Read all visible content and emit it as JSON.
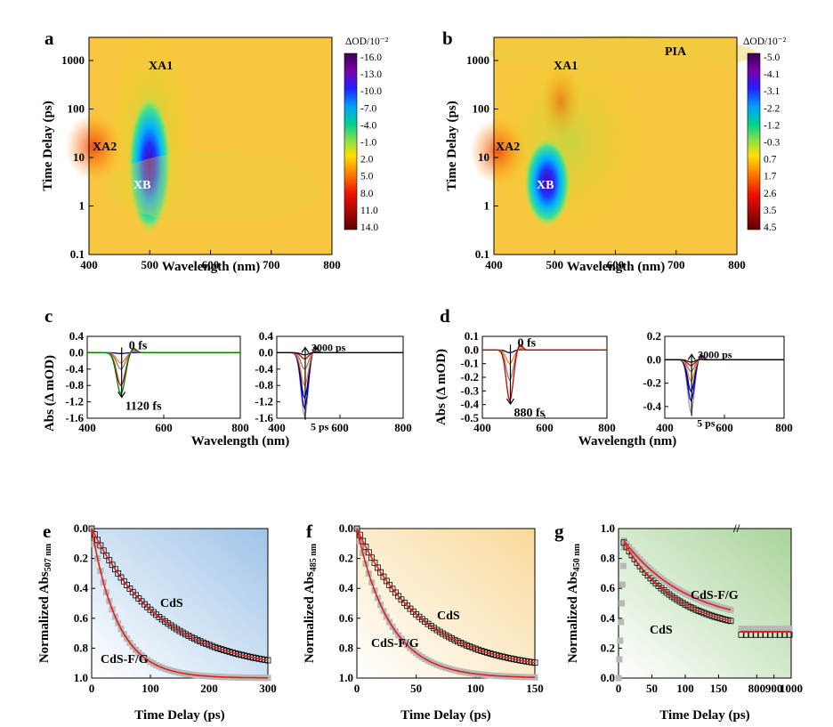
{
  "panels": [
    {
      "id": "a",
      "letter": "a",
      "type": "heatmap",
      "xlabel": "Wavelength (nm)",
      "ylabel": "Time Delay (ps)",
      "x_ticks": [
        "400",
        "500",
        "600",
        "700",
        "800"
      ],
      "y_ticks": [
        "0.1",
        "1",
        "10",
        "100",
        "1000"
      ],
      "xlim": [
        400,
        800
      ],
      "ylim": [
        0.1,
        3000
      ],
      "y_scale": "log",
      "colorbar_title": "ΔOD/10⁻²",
      "colorbar_ticks": [
        "-16.0",
        "-13.0",
        "-10.0",
        "-7.0",
        "-4.0",
        "-1.0",
        "2.0",
        "5.0",
        "8.0",
        "11.0",
        "14.0"
      ],
      "annotations": [
        {
          "text": "XA1",
          "x": 505,
          "y": 1000
        },
        {
          "text": "XA2",
          "x": 410,
          "y": 15
        },
        {
          "text": "XB",
          "x": 490,
          "y": 2.6
        }
      ]
    },
    {
      "id": "b",
      "letter": "b",
      "type": "heatmap",
      "xlabel": "Wavelength (nm)",
      "ylabel": "Time Delay (ps)",
      "x_ticks": [
        "400",
        "500",
        "600",
        "700",
        "800"
      ],
      "y_ticks": [
        "0.1",
        "1",
        "10",
        "100",
        "1000"
      ],
      "xlim": [
        400,
        800
      ],
      "ylim": [
        0.1,
        3000
      ],
      "y_scale": "log",
      "colorbar_title": "ΔOD/10⁻²",
      "colorbar_ticks": [
        "-5.0",
        "-4.1",
        "-3.1",
        "-2.2",
        "-1.2",
        "-0.3",
        "0.7",
        "1.7",
        "2.6",
        "3.5",
        "4.5"
      ],
      "annotations": [
        {
          "text": "XA1",
          "x": 520,
          "y": 1000
        },
        {
          "text": "XA2",
          "x": 410,
          "y": 15
        },
        {
          "text": "XB",
          "x": 490,
          "y": 2.6
        },
        {
          "text": "PIA",
          "x": 735,
          "y": 1500
        }
      ]
    },
    {
      "id": "c",
      "letter": "c",
      "type": "line",
      "ylabel": "Abs (Δ mOD)",
      "xlabel": "Wavelength (nm)",
      "subplots": [
        {
          "xlim": [
            400,
            800
          ],
          "ylim": [
            -1.6,
            0.4
          ],
          "x_ticks": [
            "400",
            "600",
            "800"
          ],
          "y_ticks": [
            "0.4",
            "0.0",
            "-0.4",
            "-0.8",
            "-1.2",
            "-1.6"
          ],
          "arrow_from_label": "0 fs",
          "arrow_to_label": "1120 fs",
          "series": [
            {
              "color": "#000080",
              "peak": -0.02
            },
            {
              "color": "#ff7f0e",
              "peak": -0.25
            },
            {
              "color": "#808080",
              "peak": -0.4
            },
            {
              "color": "#cc0000",
              "peak": -0.8
            },
            {
              "color": "#008000",
              "peak": -1.0
            }
          ]
        },
        {
          "xlim": [
            400,
            800
          ],
          "ylim": [
            -1.6,
            0.4
          ],
          "x_ticks": [
            "400",
            "600",
            "800"
          ],
          "y_ticks": [
            "0.4",
            "0.0",
            "-0.4",
            "-0.8",
            "-1.2",
            "-1.6"
          ],
          "arrow_from_label": "5 ps",
          "arrow_to_label": "3000 ps",
          "series": [
            {
              "color": "#a0a0a0",
              "peak": -1.55
            },
            {
              "color": "#0000cc",
              "peak": -1.35
            },
            {
              "color": "#000080",
              "peak": -1.1
            },
            {
              "color": "#ff7f0e",
              "peak": -0.8
            },
            {
              "color": "#808080",
              "peak": -0.4
            },
            {
              "color": "#cc0000",
              "peak": -0.15
            },
            {
              "color": "#000000",
              "peak": -0.05
            }
          ]
        }
      ]
    },
    {
      "id": "d",
      "letter": "d",
      "type": "line",
      "ylabel": "Abs (Δ mOD)",
      "xlabel": "Wavelength (nm)",
      "subplots": [
        {
          "xlim": [
            400,
            800
          ],
          "ylim": [
            -0.5,
            0.1
          ],
          "x_ticks": [
            "400",
            "600",
            "800"
          ],
          "y_ticks": [
            "0.1",
            "0.0",
            "-0.1",
            "-0.2",
            "-0.3",
            "-0.4",
            "-0.5"
          ],
          "arrow_from_label": "0 fs",
          "arrow_to_label": "880 fs",
          "series": [
            {
              "color": "#000080",
              "peak": -0.02
            },
            {
              "color": "#ff7f0e",
              "peak": -0.1
            },
            {
              "color": "#808080",
              "peak": -0.22
            },
            {
              "color": "#cc0000",
              "peak": -0.37
            }
          ]
        },
        {
          "xlim": [
            400,
            800
          ],
          "ylim": [
            -0.5,
            0.2
          ],
          "x_ticks": [
            "400",
            "600",
            "800"
          ],
          "y_ticks": [
            "0.2",
            "0.0",
            "-0.2",
            "-0.4"
          ],
          "arrow_from_label": "5 ps",
          "arrow_to_label": "3000 ps",
          "series": [
            {
              "color": "#a0a0a0",
              "peak": -0.45
            },
            {
              "color": "#0000cc",
              "peak": -0.35
            },
            {
              "color": "#000080",
              "peak": -0.27
            },
            {
              "color": "#ff7f0e",
              "peak": -0.18
            },
            {
              "color": "#808080",
              "peak": -0.1
            },
            {
              "color": "#cc0000",
              "peak": -0.05
            },
            {
              "color": "#000000",
              "peak": -0.02
            }
          ]
        }
      ]
    },
    {
      "id": "e",
      "letter": "e",
      "type": "scatter",
      "ylabel": "Normalized Abs",
      "ylabel_sub": "507 nm",
      "xlabel": "Time Delay (ps)",
      "xlim": [
        0,
        300
      ],
      "ylim": [
        0,
        1
      ],
      "y_inverted": true,
      "x_ticks": [
        "0",
        "100",
        "200",
        "300"
      ],
      "y_ticks": [
        "0.0",
        "0.2",
        "0.4",
        "0.6",
        "0.8",
        "1.0"
      ],
      "series": [
        {
          "name": "CdS",
          "marker": "open-square",
          "tau": 120
        },
        {
          "name": "CdS-F/G",
          "marker": "gray-square",
          "tau": 45
        }
      ],
      "labels": [
        {
          "text": "CdS",
          "x": 95,
          "y": 0.58
        },
        {
          "text": "CdS-F/G",
          "x": 55,
          "y": 0.92
        }
      ]
    },
    {
      "id": "f",
      "letter": "f",
      "type": "scatter",
      "ylabel": "Normalized Abs",
      "ylabel_sub": "485 nm",
      "xlabel": "Time Delay (ps)",
      "xlim": [
        0,
        150
      ],
      "ylim": [
        0,
        1
      ],
      "y_inverted": true,
      "x_ticks": [
        "0",
        "50",
        "100",
        "150"
      ],
      "y_ticks": [
        "0.0",
        "0.2",
        "0.4",
        "0.6",
        "0.8",
        "1.0"
      ],
      "series": [
        {
          "name": "CdS",
          "marker": "open-square",
          "tau": 55
        },
        {
          "name": "CdS-F/G",
          "marker": "gray-square",
          "tau": 28
        }
      ],
      "labels": [
        {
          "text": "CdS",
          "x": 60,
          "y": 0.65
        },
        {
          "text": "CdS-F/G",
          "x": 30,
          "y": 0.85
        }
      ]
    },
    {
      "id": "g",
      "letter": "g",
      "type": "scatter",
      "ylabel": "Normalized Abs",
      "ylabel_sub": "450 nm",
      "xlabel": "Time Delay (ps)",
      "xlim": [
        0,
        1000
      ],
      "ylim": [
        0,
        1
      ],
      "x_break": [
        180,
        700
      ],
      "x_ticks": [
        "0",
        "50",
        "100",
        "150",
        "800",
        "900",
        "1000"
      ],
      "y_ticks": [
        "0.0",
        "0.2",
        "0.4",
        "0.6",
        "0.8",
        "1.0"
      ],
      "series": [
        {
          "name": "CdS",
          "marker": "open-square"
        },
        {
          "name": "CdS-F/G",
          "marker": "gray-square"
        }
      ],
      "labels": [
        {
          "text": "CdS-F/G",
          "x": 110,
          "y": 0.68
        },
        {
          "text": "CdS",
          "x": 45,
          "y": 0.43
        }
      ]
    }
  ],
  "colors": {
    "fit_line": "#e0201b",
    "gray_marker": "#b8b8b8",
    "open_marker": "#000000"
  }
}
